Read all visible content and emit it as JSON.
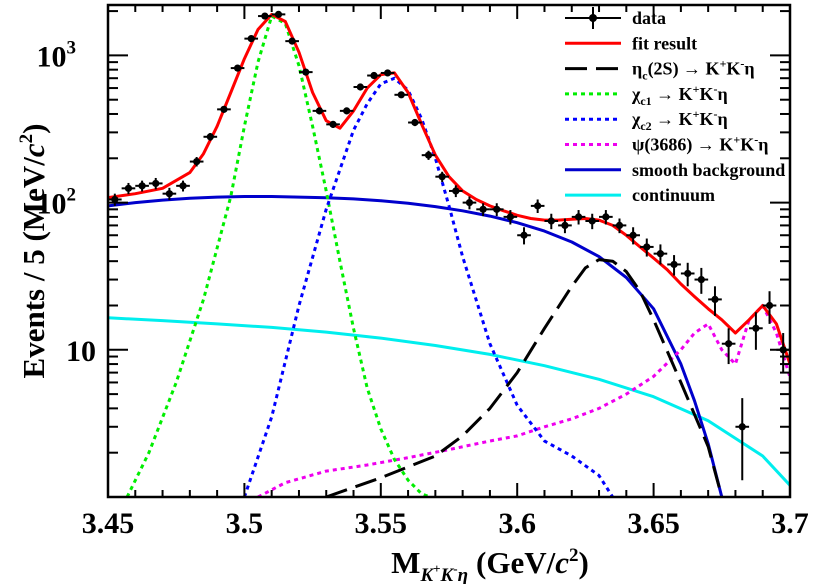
{
  "chart_data": {
    "type": "line",
    "xlabel": {
      "main": "M",
      "subscript_particles": "K",
      "subscript_sup_plus": "+",
      "subscript_mid": "K",
      "subscript_sup_minus": "-",
      "subscript_eta": "η",
      "units": "(GeV/",
      "units_c": "c",
      "units_pow": "2",
      "units_close": ")"
    },
    "ylabel": {
      "text": "Events / 5 (MeV/",
      "c": "c",
      "pow": "2",
      "close": ")"
    },
    "xlim": [
      3.45,
      3.7
    ],
    "ylim_log": [
      1.0,
      2200
    ],
    "yscale": "log",
    "x_ticks": [
      {
        "value": 3.45,
        "label": "3.45"
      },
      {
        "value": 3.5,
        "label": "3.5"
      },
      {
        "value": 3.55,
        "label": "3.55"
      },
      {
        "value": 3.6,
        "label": "3.6"
      },
      {
        "value": 3.65,
        "label": "3.65"
      },
      {
        "value": 3.7,
        "label": "3.7"
      }
    ],
    "y_ticks": [
      {
        "value": 10,
        "label": "10"
      },
      {
        "value": 100,
        "label": "10",
        "sup": "2"
      },
      {
        "value": 1000,
        "label": "10",
        "sup": "3"
      }
    ],
    "legend": {
      "position": "top-right",
      "entries": [
        {
          "id": "data",
          "label": "data",
          "color": "#000000",
          "style": "marker"
        },
        {
          "id": "fit",
          "label": "fit result",
          "color": "#ff0000",
          "style": "solid"
        },
        {
          "id": "etac2s",
          "label": "η",
          "sub": "c",
          "rest": "(2S)  → K",
          "sup1": "+",
          "mid": "K",
          "sup2": "-",
          "end": "η",
          "color": "#000000",
          "style": "dashed"
        },
        {
          "id": "chic1",
          "label": "χ",
          "sub": "c1",
          "rest": "  → K",
          "sup1": "+",
          "mid": "K",
          "sup2": "-",
          "end": "η",
          "color": "#00ee00",
          "style": "dotted"
        },
        {
          "id": "chic2",
          "label": "χ",
          "sub": "c2",
          "rest": "  → K",
          "sup1": "+",
          "mid": "K",
          "sup2": "-",
          "end": "η",
          "color": "#0000ff",
          "style": "dotted"
        },
        {
          "id": "psi",
          "label": "ψ(3686)  → K",
          "sup1": "+",
          "mid": "K",
          "sup2": "-",
          "end": "η",
          "color": "#ee00ee",
          "style": "dotted"
        },
        {
          "id": "smooth",
          "label": "smooth background",
          "color": "#0000cc",
          "style": "solid"
        },
        {
          "id": "cont",
          "label": "continuum",
          "color": "#00eeee",
          "style": "solid"
        }
      ]
    },
    "data_points": {
      "x": [
        3.4525,
        3.4575,
        3.4625,
        3.4675,
        3.4725,
        3.4775,
        3.4825,
        3.4875,
        3.4925,
        3.4975,
        3.5025,
        3.5075,
        3.5125,
        3.5175,
        3.5225,
        3.5275,
        3.5325,
        3.5375,
        3.5425,
        3.5475,
        3.5525,
        3.5575,
        3.5625,
        3.5675,
        3.5725,
        3.5775,
        3.5825,
        3.5875,
        3.5925,
        3.5975,
        3.6025,
        3.6075,
        3.6125,
        3.6175,
        3.6225,
        3.6275,
        3.6325,
        3.6375,
        3.6425,
        3.6475,
        3.6525,
        3.6575,
        3.6625,
        3.6675,
        3.6725,
        3.6775,
        3.6825,
        3.6875,
        3.6925,
        3.6975
      ],
      "y": [
        105,
        125,
        130,
        135,
        115,
        130,
        190,
        280,
        430,
        820,
        1300,
        1850,
        1900,
        1250,
        770,
        420,
        340,
        420,
        610,
        730,
        760,
        540,
        350,
        210,
        150,
        120,
        100,
        90,
        90,
        80,
        60,
        95,
        75,
        70,
        80,
        75,
        80,
        70,
        60,
        50,
        45,
        38,
        33,
        30,
        22,
        11,
        3,
        14,
        20,
        10
      ],
      "yerr": [
        10,
        11,
        11,
        12,
        11,
        11,
        14,
        17,
        21,
        29,
        36,
        43,
        44,
        35,
        28,
        21,
        18,
        21,
        25,
        27,
        28,
        23,
        19,
        15,
        12,
        11,
        10,
        9,
        9,
        9,
        8,
        10,
        9,
        8,
        9,
        9,
        9,
        8,
        8,
        7,
        7,
        6,
        6,
        6,
        5,
        3,
        1.7,
        4,
        5,
        3
      ]
    },
    "series": [
      {
        "id": "fit",
        "name": "fit result",
        "x": [
          3.45,
          3.46,
          3.47,
          3.48,
          3.485,
          3.49,
          3.495,
          3.5,
          3.505,
          3.51,
          3.515,
          3.52,
          3.525,
          3.53,
          3.535,
          3.54,
          3.545,
          3.55,
          3.555,
          3.56,
          3.565,
          3.57,
          3.575,
          3.58,
          3.585,
          3.59,
          3.595,
          3.6,
          3.605,
          3.61,
          3.615,
          3.62,
          3.625,
          3.63,
          3.635,
          3.64,
          3.645,
          3.65,
          3.655,
          3.66,
          3.665,
          3.67,
          3.675,
          3.68,
          3.685,
          3.69,
          3.695,
          3.7
        ],
        "y": [
          108,
          115,
          125,
          160,
          215,
          330,
          560,
          950,
          1500,
          1900,
          1700,
          1050,
          560,
          360,
          320,
          420,
          600,
          740,
          760,
          560,
          340,
          210,
          150,
          120,
          105,
          95,
          88,
          82,
          78,
          76,
          76,
          77,
          78,
          76,
          70,
          60,
          50,
          42,
          35,
          28,
          23,
          19,
          16,
          13,
          16,
          20,
          15,
          8
        ]
      },
      {
        "id": "smooth",
        "name": "smooth background",
        "x": [
          3.45,
          3.46,
          3.47,
          3.48,
          3.49,
          3.5,
          3.51,
          3.52,
          3.53,
          3.54,
          3.55,
          3.56,
          3.57,
          3.58,
          3.59,
          3.6,
          3.61,
          3.62,
          3.63,
          3.64,
          3.65,
          3.66,
          3.665,
          3.67,
          3.675
        ],
        "y": [
          95,
          100,
          104,
          107,
          109,
          110,
          110,
          109,
          108,
          106,
          103,
          99,
          94,
          88,
          81,
          73,
          64,
          54,
          43,
          31,
          19,
          8,
          4.5,
          2.3,
          1.0
        ]
      },
      {
        "id": "cont",
        "name": "continuum",
        "x": [
          3.45,
          3.47,
          3.49,
          3.51,
          3.53,
          3.55,
          3.57,
          3.59,
          3.61,
          3.63,
          3.65,
          3.67,
          3.69,
          3.7
        ],
        "y": [
          16.5,
          15.8,
          15.0,
          14.2,
          13.2,
          12.0,
          10.7,
          9.3,
          7.8,
          6.3,
          4.8,
          3.3,
          1.9,
          1.2
        ]
      },
      {
        "id": "chic1",
        "name": "χc1 → K+K-η",
        "x": [
          3.457,
          3.465,
          3.475,
          3.485,
          3.495,
          3.5,
          3.505,
          3.51,
          3.515,
          3.52,
          3.525,
          3.53,
          3.535,
          3.54,
          3.545,
          3.55,
          3.555,
          3.56,
          3.565,
          3.568
        ],
        "y": [
          1.0,
          2.0,
          6,
          22,
          110,
          330,
          900,
          1850,
          1650,
          850,
          330,
          120,
          40,
          14,
          5.5,
          2.9,
          1.8,
          1.3,
          1.05,
          1.0
        ]
      },
      {
        "id": "chic2",
        "name": "χc2 → K+K-η",
        "x": [
          3.5,
          3.51,
          3.52,
          3.53,
          3.54,
          3.545,
          3.55,
          3.555,
          3.56,
          3.565,
          3.57,
          3.575,
          3.58,
          3.59,
          3.6,
          3.61,
          3.62,
          3.63,
          3.635
        ],
        "y": [
          1.0,
          3.5,
          20,
          90,
          310,
          470,
          640,
          700,
          580,
          370,
          200,
          95,
          43,
          11,
          4.2,
          2.4,
          1.9,
          1.4,
          1.0
        ]
      },
      {
        "id": "etac2s",
        "name": "ηc(2S) → K+K-η",
        "x": [
          3.53,
          3.55,
          3.57,
          3.58,
          3.59,
          3.6,
          3.61,
          3.62,
          3.625,
          3.63,
          3.635,
          3.64,
          3.645,
          3.65,
          3.66,
          3.67,
          3.675
        ],
        "y": [
          1.0,
          1.35,
          1.9,
          2.6,
          4.0,
          7.0,
          14,
          27,
          36,
          41,
          40,
          34,
          25,
          16,
          6,
          2.2,
          1.0
        ]
      },
      {
        "id": "psi",
        "name": "ψ(3686) → K+K-η",
        "x": [
          3.505,
          3.515,
          3.53,
          3.545,
          3.56,
          3.575,
          3.59,
          3.6,
          3.61,
          3.62,
          3.63,
          3.64,
          3.65,
          3.66,
          3.665,
          3.67,
          3.675,
          3.68,
          3.685,
          3.69,
          3.695,
          3.7
        ],
        "y": [
          1.0,
          1.25,
          1.5,
          1.65,
          1.85,
          2.1,
          2.4,
          2.6,
          3.0,
          3.4,
          4.0,
          5.0,
          6.6,
          10,
          13,
          15,
          10,
          8,
          16,
          20,
          13,
          6.5
        ]
      }
    ]
  }
}
